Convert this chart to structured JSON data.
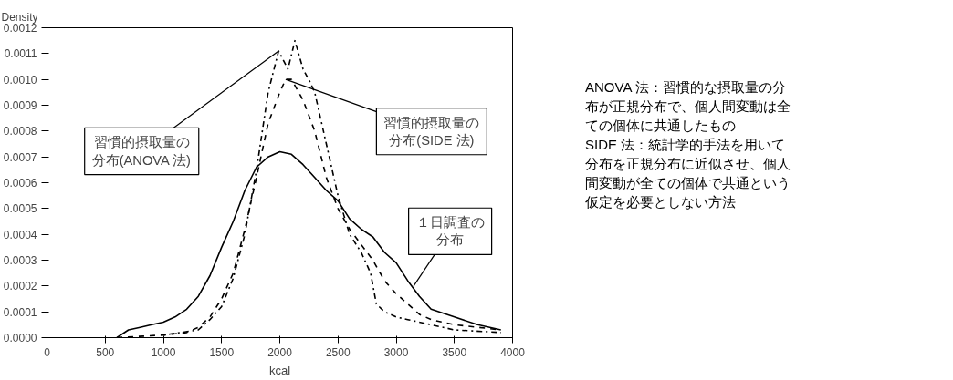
{
  "chart_data": {
    "type": "line",
    "xlabel": "kcal",
    "ylabel": "Density",
    "xlim": [
      0,
      4000
    ],
    "xticks": [
      0,
      500,
      1000,
      1500,
      2000,
      2500,
      3000,
      3500,
      4000
    ],
    "ylim": [
      0,
      0.0012
    ],
    "yticks": [
      {
        "value": 0,
        "label": "0.0000"
      },
      {
        "value": 0.0001,
        "label": "0.0001"
      },
      {
        "value": 0.0002,
        "label": "0.0002"
      },
      {
        "value": 0.0003,
        "label": "0.0003"
      },
      {
        "value": 0.0004,
        "label": "0.0004"
      },
      {
        "value": 0.0005,
        "label": "0.0005"
      },
      {
        "value": 0.0006,
        "label": "0.0006"
      },
      {
        "value": 0.0007,
        "label": "0.0007"
      },
      {
        "value": 0.0008,
        "label": "0.0008"
      },
      {
        "value": 0.0009,
        "label": "0.0009"
      },
      {
        "value": 0.001,
        "label": "0.0010"
      },
      {
        "value": 0.0011,
        "label": "0.0011"
      },
      {
        "value": 0.0012,
        "label": "0.0012"
      }
    ],
    "grid": false,
    "marker": "none",
    "series": [
      {
        "color": "#000000",
        "line_style": "solid",
        "x": [
          600,
          700,
          800,
          900,
          1000,
          1100,
          1200,
          1300,
          1400,
          1500,
          1600,
          1700,
          1800,
          1900,
          2000,
          2100,
          2200,
          2300,
          2400,
          2500,
          2600,
          2700,
          2800,
          2900,
          3000,
          3100,
          3200,
          3300,
          3500,
          3700,
          3900
        ],
        "values": [
          0.0,
          3e-05,
          4e-05,
          5e-05,
          6e-05,
          8e-05,
          0.00011,
          0.00016,
          0.00024,
          0.00035,
          0.00045,
          0.00057,
          0.00066,
          0.0007,
          0.00072,
          0.00071,
          0.00067,
          0.00062,
          0.00057,
          0.00053,
          0.00046,
          0.00042,
          0.00039,
          0.00033,
          0.00029,
          0.00022,
          0.00016,
          0.00011,
          8e-05,
          5e-05,
          3e-05
        ]
      },
      {
        "color": "#000000",
        "line_style": "dashed",
        "x": [
          600,
          1000,
          1200,
          1300,
          1400,
          1500,
          1600,
          1700,
          1800,
          1900,
          2000,
          2050,
          2100,
          2200,
          2300,
          2400,
          2500,
          2600,
          2700,
          2800,
          2900,
          3000,
          3100,
          3200,
          3300,
          3500,
          3700,
          3900
        ],
        "values": [
          0.0,
          1e-05,
          2e-05,
          4e-05,
          8e-05,
          0.00015,
          0.00025,
          0.00042,
          0.00062,
          0.00083,
          0.00095,
          0.001,
          0.001,
          0.00092,
          0.0008,
          0.00062,
          0.0005,
          0.00042,
          0.00036,
          0.0003,
          0.00022,
          0.00017,
          0.00013,
          9e-05,
          7e-05,
          5e-05,
          4e-05,
          3e-05
        ]
      },
      {
        "color": "#000000",
        "line_style": "dotted",
        "x": [
          1000,
          1300,
          1400,
          1500,
          1600,
          1700,
          1800,
          1900,
          1990,
          2070,
          2130,
          2200,
          2260,
          2300,
          2350,
          2400,
          2500,
          2600,
          2700,
          2780,
          2830,
          2900,
          3000,
          3100,
          3500,
          3900
        ],
        "values": [
          1e-05,
          3e-05,
          7e-05,
          0.00012,
          0.00023,
          0.0004,
          0.00065,
          0.00095,
          0.00111,
          0.00104,
          0.00115,
          0.00104,
          0.00099,
          0.00095,
          0.00085,
          0.00075,
          0.00055,
          0.0004,
          0.00033,
          0.00025,
          0.00013,
          0.0001,
          8e-05,
          7e-05,
          3e-05,
          2e-05
        ]
      }
    ],
    "annotations": [
      {
        "text": "習慣的摂取量の分布(ANOVA 法)",
        "x": 1990,
        "y": 0.00111
      },
      {
        "text": "習慣的摂取量の分布(SIDE 法)",
        "x": 2050,
        "y": 0.001
      },
      {
        "text": "１日調査の分布",
        "x": 3150,
        "y": 0.0002
      },
      "ANOVA 法：習慣的な摂取量の分布が正規分布で、個人間変動は全ての個体に共通したもの",
      "SIDE 法：統計学的手法を用いて分布を正規分布に近似させ、個人間変動が全ての個体で共通という仮定を必要としない方法"
    ]
  }
}
